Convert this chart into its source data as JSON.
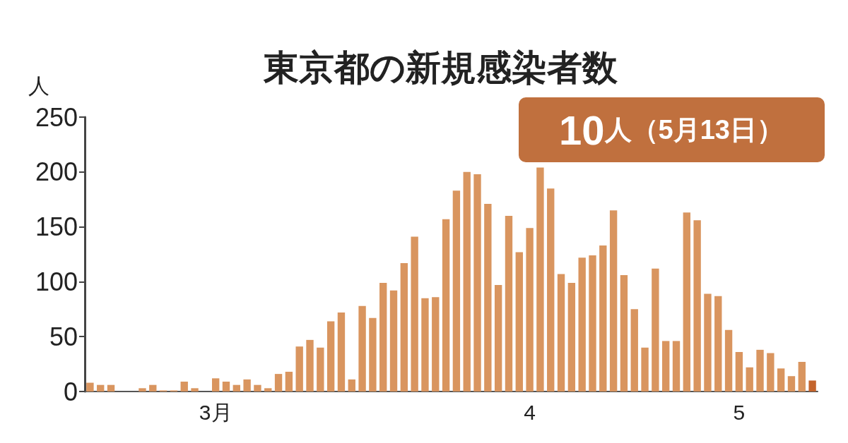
{
  "chart_data": {
    "type": "bar",
    "title": "東京都の新規感染者数",
    "ylabel": "人",
    "annotations": [
      "10人（5月13日）"
    ],
    "categories": [
      null,
      null,
      null,
      null,
      null,
      null,
      null,
      null,
      null,
      null,
      null,
      null,
      "3月",
      null,
      null,
      null,
      null,
      null,
      null,
      null,
      null,
      null,
      null,
      null,
      null,
      null,
      null,
      null,
      null,
      null,
      null,
      null,
      null,
      null,
      null,
      null,
      null,
      null,
      null,
      null,
      null,
      null,
      "4",
      null,
      null,
      null,
      null,
      null,
      null,
      null,
      null,
      null,
      null,
      null,
      null,
      null,
      null,
      null,
      null,
      null,
      null,
      null,
      "5",
      null,
      null,
      null,
      null,
      null,
      null,
      null
    ],
    "values": [
      8,
      6,
      6,
      0,
      0,
      3,
      6,
      1,
      1,
      9,
      3,
      0,
      12,
      9,
      6,
      11,
      6,
      3,
      16,
      18,
      41,
      47,
      40,
      64,
      72,
      11,
      78,
      67,
      99,
      92,
      117,
      141,
      85,
      86,
      157,
      183,
      200,
      198,
      171,
      97,
      160,
      127,
      149,
      204,
      185,
      107,
      99,
      122,
      124,
      133,
      165,
      106,
      75,
      40,
      112,
      46,
      46,
      163,
      156,
      89,
      87,
      56,
      36,
      22,
      38,
      35,
      21,
      14,
      27,
      10
    ],
    "colors": [
      "#d9955f",
      "#d9955f",
      "#d9955f",
      "#d9955f",
      "#d9955f",
      "#d9955f",
      "#d9955f",
      "#d9955f",
      "#d9955f",
      "#d9955f",
      "#d9955f",
      "#d9955f",
      "#d9955f",
      "#d9955f",
      "#d9955f",
      "#d9955f",
      "#d9955f",
      "#d9955f",
      "#d9955f",
      "#d9955f",
      "#d9955f",
      "#d9955f",
      "#d9955f",
      "#d9955f",
      "#d9955f",
      "#d9955f",
      "#d9955f",
      "#d9955f",
      "#d9955f",
      "#d9955f",
      "#d9955f",
      "#d9955f",
      "#d9955f",
      "#d9955f",
      "#d9955f",
      "#d9955f",
      "#d9955f",
      "#d9955f",
      "#d9955f",
      "#d9955f",
      "#d9955f",
      "#d9955f",
      "#d9955f",
      "#d9955f",
      "#d9955f",
      "#d9955f",
      "#d9955f",
      "#d9955f",
      "#d9955f",
      "#d9955f",
      "#d9955f",
      "#d9955f",
      "#d9955f",
      "#d9955f",
      "#d9955f",
      "#d9955f",
      "#d9955f",
      "#d9955f",
      "#d9955f",
      "#d9955f",
      "#d9955f",
      "#d9955f",
      "#d9955f",
      "#d9955f",
      "#d9955f",
      "#d9955f",
      "#d9955f",
      "#d9955f",
      "#d9955f",
      "#c4642c"
    ],
    "ylim": [
      0,
      250
    ],
    "yticks": [
      0,
      50,
      100,
      150,
      200,
      250
    ],
    "grid": false
  }
}
